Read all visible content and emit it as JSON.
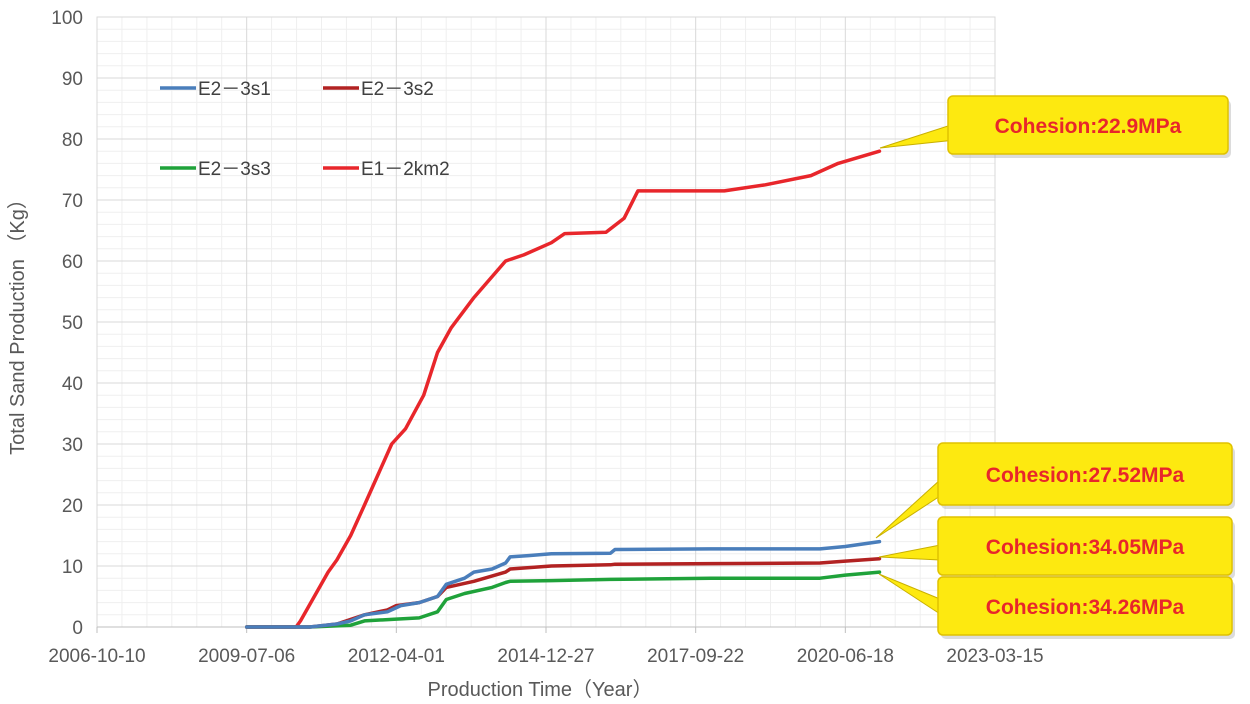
{
  "chart_data": {
    "type": "line",
    "xlabel": "Production Time（Year）",
    "ylabel": "Total Sand Production （Kg）",
    "x_tick_labels": [
      "2006-10-10",
      "2009-07-06",
      "2012-04-01",
      "2014-12-27",
      "2017-09-22",
      "2020-06-18",
      "2023-03-15"
    ],
    "xlim": [
      "2006-10-10",
      "2023-03-15"
    ],
    "ylim": [
      0,
      100
    ],
    "y_ticks": [
      0,
      10,
      20,
      30,
      40,
      50,
      60,
      70,
      80,
      90,
      100
    ],
    "grid": true,
    "legend": {
      "placement": "top-left",
      "entries": [
        "E2－3s1",
        "E2－3s2",
        "E2－3s3",
        "E1－2km2"
      ]
    },
    "series": [
      {
        "name": "E2－3s1",
        "color": "#4a7ebb",
        "points": [
          [
            "2009-07-06",
            0
          ],
          [
            "2010-09-01",
            0
          ],
          [
            "2011-03-01",
            0.5
          ],
          [
            "2011-06-01",
            1.0
          ],
          [
            "2011-09-01",
            2.0
          ],
          [
            "2012-02-01",
            2.5
          ],
          [
            "2012-05-01",
            3.5
          ],
          [
            "2012-09-01",
            4.0
          ],
          [
            "2013-01-01",
            5.0
          ],
          [
            "2013-03-01",
            7.0
          ],
          [
            "2013-07-01",
            8.0
          ],
          [
            "2013-09-01",
            9.0
          ],
          [
            "2014-01-01",
            9.5
          ],
          [
            "2014-04-01",
            10.5
          ],
          [
            "2014-05-01",
            11.5
          ],
          [
            "2014-09-01",
            11.7
          ],
          [
            "2015-02-01",
            12.0
          ],
          [
            "2016-03-01",
            12.1
          ],
          [
            "2016-04-01",
            12.7
          ],
          [
            "2018-01-01",
            12.8
          ],
          [
            "2020-01-01",
            12.8
          ],
          [
            "2020-06-18",
            13.2
          ],
          [
            "2021-02-01",
            14.0
          ]
        ]
      },
      {
        "name": "E2－3s2",
        "color": "#b22222",
        "points": [
          [
            "2009-07-06",
            0
          ],
          [
            "2010-09-01",
            0
          ],
          [
            "2011-03-01",
            0.5
          ],
          [
            "2011-09-01",
            2.0
          ],
          [
            "2012-02-01",
            2.8
          ],
          [
            "2012-04-01",
            3.5
          ],
          [
            "2012-09-01",
            4.0
          ],
          [
            "2013-01-01",
            5.0
          ],
          [
            "2013-03-01",
            6.5
          ],
          [
            "2013-09-01",
            7.5
          ],
          [
            "2014-04-01",
            9.0
          ],
          [
            "2014-05-01",
            9.5
          ],
          [
            "2015-02-01",
            10.0
          ],
          [
            "2016-03-01",
            10.2
          ],
          [
            "2016-04-01",
            10.3
          ],
          [
            "2018-01-01",
            10.4
          ],
          [
            "2020-01-01",
            10.5
          ],
          [
            "2020-06-18",
            10.8
          ],
          [
            "2021-02-01",
            11.2
          ]
        ]
      },
      {
        "name": "E2－3s3",
        "color": "#1fa23a",
        "points": [
          [
            "2009-07-06",
            0
          ],
          [
            "2010-09-01",
            0
          ],
          [
            "2011-06-01",
            0.3
          ],
          [
            "2011-09-01",
            1.0
          ],
          [
            "2012-04-01",
            1.3
          ],
          [
            "2012-09-01",
            1.5
          ],
          [
            "2013-01-01",
            2.5
          ],
          [
            "2013-03-01",
            4.5
          ],
          [
            "2013-07-01",
            5.5
          ],
          [
            "2014-01-01",
            6.5
          ],
          [
            "2014-04-01",
            7.3
          ],
          [
            "2014-05-01",
            7.5
          ],
          [
            "2015-02-01",
            7.6
          ],
          [
            "2016-03-01",
            7.8
          ],
          [
            "2018-01-01",
            8.0
          ],
          [
            "2020-01-01",
            8.0
          ],
          [
            "2020-06-18",
            8.5
          ],
          [
            "2021-02-01",
            9.0
          ]
        ]
      },
      {
        "name": "E1－2km2",
        "color": "#e8262b",
        "points": [
          [
            "2009-07-06",
            0
          ],
          [
            "2010-06-01",
            0
          ],
          [
            "2010-07-01",
            1.0
          ],
          [
            "2010-10-01",
            5.0
          ],
          [
            "2011-01-01",
            9.0
          ],
          [
            "2011-03-01",
            11.0
          ],
          [
            "2011-06-01",
            15.0
          ],
          [
            "2011-09-01",
            20.0
          ],
          [
            "2011-12-01",
            25.0
          ],
          [
            "2012-03-01",
            30.0
          ],
          [
            "2012-06-01",
            32.5
          ],
          [
            "2012-10-01",
            38.0
          ],
          [
            "2013-01-01",
            45.0
          ],
          [
            "2013-04-01",
            49.0
          ],
          [
            "2013-09-01",
            54.0
          ],
          [
            "2014-04-01",
            60.0
          ],
          [
            "2014-08-01",
            61.0
          ],
          [
            "2015-02-01",
            63.0
          ],
          [
            "2015-05-01",
            64.5
          ],
          [
            "2016-02-01",
            64.7
          ],
          [
            "2016-06-01",
            67.0
          ],
          [
            "2016-09-01",
            71.5
          ],
          [
            "2018-04-01",
            71.5
          ],
          [
            "2019-01-01",
            72.5
          ],
          [
            "2019-11-01",
            74.0
          ],
          [
            "2020-05-01",
            76.0
          ],
          [
            "2021-02-01",
            78.0
          ]
        ]
      }
    ],
    "annotations": [
      {
        "text": "Cohesion:22.9MPa",
        "series": "E1－2km2"
      },
      {
        "text": "Cohesion:27.52MPa",
        "series": "E2－3s1"
      },
      {
        "text": "Cohesion:34.05MPa",
        "series": "E2－3s2"
      },
      {
        "text": "Cohesion:34.26MPa",
        "series": "E2－3s3"
      }
    ],
    "annotation_fill": "#fde910",
    "annotation_text_color": "#e8262b"
  }
}
